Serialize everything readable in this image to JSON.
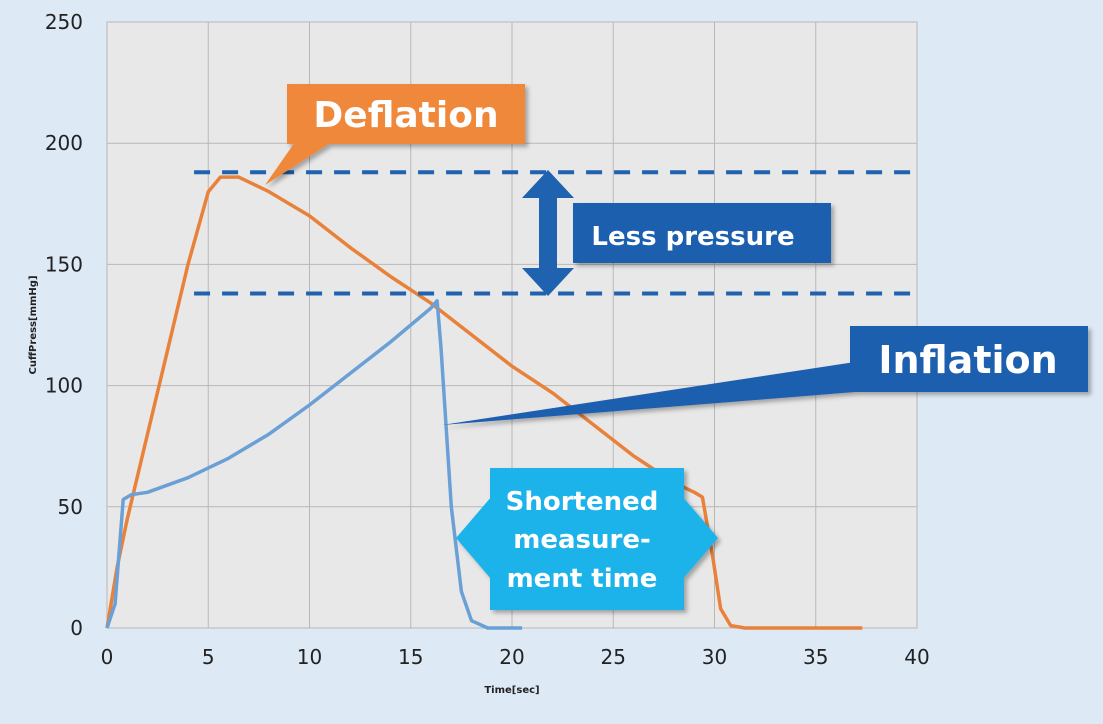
{
  "chart_data": {
    "type": "line",
    "title": "",
    "xlabel": "Time[sec]",
    "ylabel": "CuffPress[mmHg]",
    "xlim": [
      0,
      40
    ],
    "ylim": [
      0,
      250
    ],
    "x_ticks": [
      0,
      5,
      10,
      15,
      20,
      25,
      30,
      35,
      40
    ],
    "y_ticks": [
      0,
      50,
      100,
      150,
      200,
      250
    ],
    "grid": true,
    "legend": "none",
    "series": [
      {
        "color": "#e8813a",
        "points": [
          [
            0,
            0
          ],
          [
            0.5,
            25
          ],
          [
            1,
            45
          ],
          [
            2,
            80
          ],
          [
            3,
            115
          ],
          [
            4,
            150
          ],
          [
            5,
            180
          ],
          [
            5.6,
            186
          ],
          [
            6.5,
            186
          ],
          [
            8,
            180
          ],
          [
            10,
            170
          ],
          [
            12,
            157
          ],
          [
            14,
            145
          ],
          [
            16,
            134
          ],
          [
            18,
            121
          ],
          [
            20,
            108
          ],
          [
            22,
            97
          ],
          [
            24,
            84
          ],
          [
            26,
            71
          ],
          [
            28,
            60
          ],
          [
            29,
            56
          ],
          [
            29.4,
            54
          ],
          [
            29.9,
            30
          ],
          [
            30.3,
            8
          ],
          [
            30.8,
            1
          ],
          [
            31.5,
            0
          ],
          [
            37.3,
            0
          ]
        ]
      },
      {
        "color": "#6aa0d6",
        "points": [
          [
            0,
            0
          ],
          [
            0.4,
            10
          ],
          [
            0.8,
            53
          ],
          [
            1.2,
            55
          ],
          [
            2,
            56
          ],
          [
            4,
            62
          ],
          [
            6,
            70
          ],
          [
            8,
            80
          ],
          [
            10,
            92
          ],
          [
            12,
            105
          ],
          [
            14,
            118
          ],
          [
            16,
            132
          ],
          [
            16.3,
            135
          ],
          [
            16.5,
            115
          ],
          [
            17,
            50
          ],
          [
            17.5,
            15
          ],
          [
            18,
            3
          ],
          [
            18.8,
            0
          ],
          [
            20.5,
            0
          ]
        ]
      }
    ],
    "annotations": {
      "deflation": "Deflation",
      "inflation": "Inflation",
      "less_pressure": "Less pressure",
      "shortened_lines": [
        "Shortened",
        "measure-",
        "ment time"
      ]
    },
    "reference_lines": [
      188,
      138
    ]
  }
}
